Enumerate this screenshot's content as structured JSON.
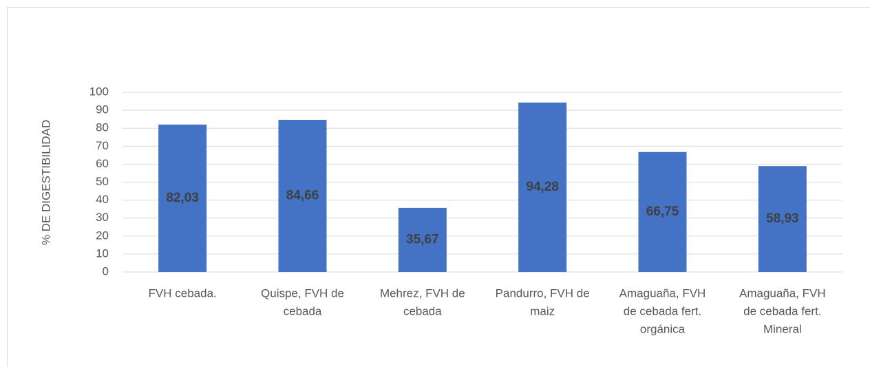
{
  "chart_data": {
    "type": "bar",
    "y_axis_label": "% DE DIGESTIBILIDAD",
    "categories": [
      [
        "FVH cebada."
      ],
      [
        "Quispe, FVH de",
        "cebada"
      ],
      [
        "Mehrez, FVH de",
        "cebada"
      ],
      [
        "Pandurro, FVH de",
        "maiz"
      ],
      [
        "Amaguaña, FVH",
        "de cebada fert.",
        "orgánica"
      ],
      [
        "Amaguaña, FVH",
        "de cebada fert.",
        "Mineral"
      ]
    ],
    "values": [
      82.03,
      84.66,
      35.67,
      94.28,
      66.75,
      58.93
    ],
    "value_labels": [
      "82,03",
      "84,66",
      "35,67",
      "94,28",
      "66,75",
      "58,93"
    ],
    "color": "#4472c4",
    "ylim": [
      0,
      100
    ],
    "yticks": [
      0,
      10,
      20,
      30,
      40,
      50,
      60,
      70,
      80,
      90,
      100
    ],
    "grid": true
  }
}
